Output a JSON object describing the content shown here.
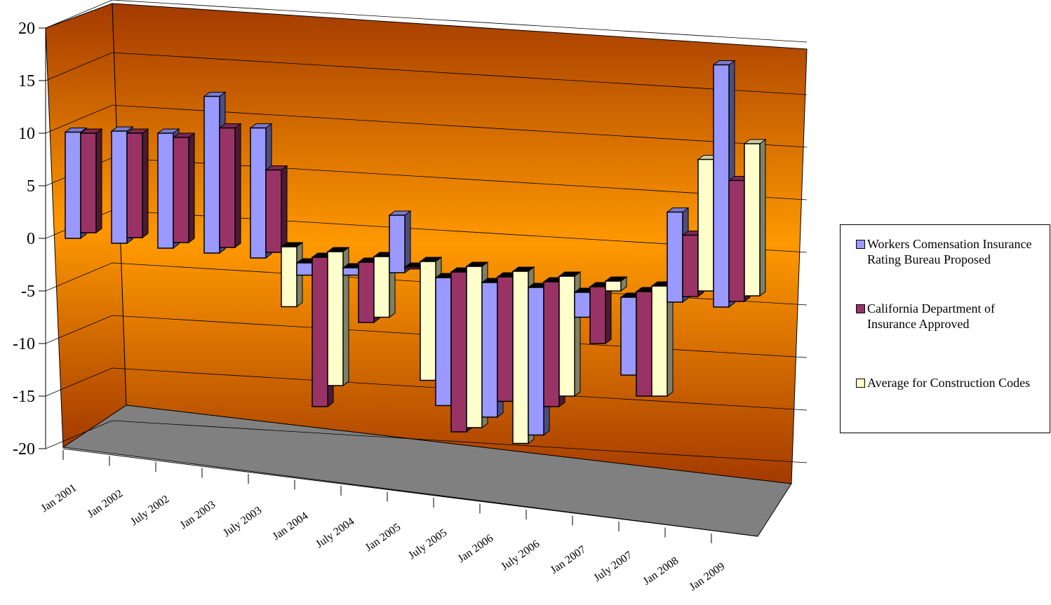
{
  "chart_data": {
    "type": "bar3d",
    "categories": [
      "Jan 2001",
      "Jan 2002",
      "July 2002",
      "Jan 2003",
      "July 2003",
      "Jan 2004",
      "July 2004",
      "Jan 2005",
      "July 2005",
      "Jan 2006",
      "July 2006",
      "Jan 2007",
      "July 2007",
      "Jan 2008",
      "Jan 2009"
    ],
    "series": [
      {
        "name": "Workers Comensation Insurance Rating Bureau Proposed",
        "color": "#9999ff",
        "values": [
          10.1,
          10.2,
          10,
          13.5,
          10.5,
          -3.5,
          -3.5,
          2.2,
          -15.9,
          -17,
          -18.7,
          -7.5,
          -13,
          2.5,
          16.5
        ]
      },
      {
        "name": "California Department of Insurance Approved",
        "color": "#993366",
        "values": [
          10,
          10,
          9.6,
          10.5,
          6.5,
          -16,
          -8,
          -2.9,
          -18.4,
          -15.5,
          -16,
          -10,
          -15,
          0.3,
          5.5
        ]
      },
      {
        "name": "Average for Construction Codes",
        "color": "#ffffcc",
        "values": [
          null,
          null,
          null,
          null,
          -6.5,
          -14,
          -7.5,
          -13.5,
          -18,
          -19.5,
          -15,
          -5,
          -15,
          7.5,
          9
        ]
      }
    ],
    "ylim": [
      -20,
      20
    ],
    "yticks": [
      -20,
      -15,
      -10,
      -5,
      0,
      5,
      10,
      15,
      20
    ],
    "grid": true
  }
}
